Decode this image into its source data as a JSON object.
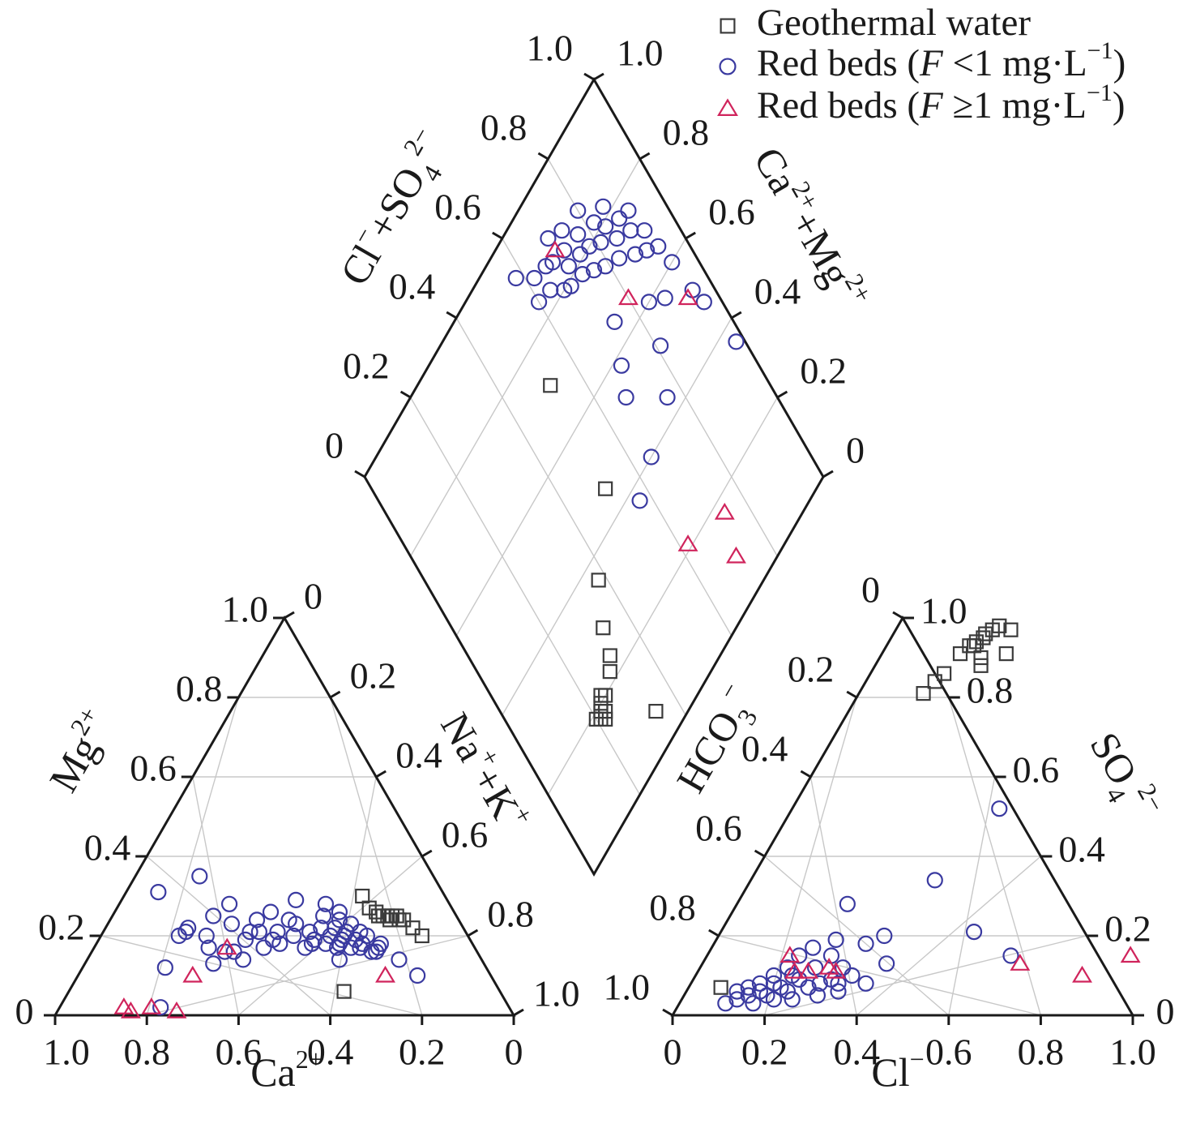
{
  "chart_data": {
    "type": "scatter",
    "diagram": "Piper trilinear diagram",
    "legend": [
      {
        "key": "geo",
        "symbol": "square",
        "color": "#3b3b3b",
        "label": "Geothermal water"
      },
      {
        "key": "rb_low",
        "symbol": "circle",
        "color": "#3a3aa0",
        "label_prefix": "Red beds (",
        "label_var": "F",
        "label_rel": " <1 mg·L",
        "label_exp": "−1",
        "label_suffix": ")"
      },
      {
        "key": "rb_high",
        "symbol": "triangle",
        "color": "#d0245c",
        "label_prefix": "Red beds (",
        "label_var": "F",
        "label_rel": " ≥1 mg·L",
        "label_exp": "−1",
        "label_suffix": ")"
      }
    ],
    "legend_placement": "top-right",
    "tick_labels": [
      "0",
      "0.2",
      "0.4",
      "0.6",
      "0.8",
      "1.0"
    ],
    "cation_triangle": {
      "axes": {
        "mg": {
          "base": "Mg",
          "sup": "2+"
        },
        "nak": {
          "base1": "Na",
          "sup1": "+",
          "mid": "+K",
          "sup2": "+"
        },
        "ca": {
          "base": "Ca",
          "sup": "2+"
        }
      },
      "series": {
        "geo": [
          [
            0.1,
            0.2
          ],
          [
            0.11,
            0.22
          ],
          [
            0.12,
            0.24
          ],
          [
            0.13,
            0.25
          ],
          [
            0.13,
            0.24
          ],
          [
            0.14,
            0.25
          ],
          [
            0.15,
            0.25
          ],
          [
            0.15,
            0.24
          ],
          [
            0.16,
            0.25
          ],
          [
            0.17,
            0.25
          ],
          [
            0.17,
            0.26
          ],
          [
            0.18,
            0.27
          ],
          [
            0.18,
            0.3
          ],
          [
            0.34,
            0.06
          ]
        ],
        "rb_low": [
          [
            0.16,
            0.1
          ],
          [
            0.18,
            0.14
          ],
          [
            0.2,
            0.18
          ],
          [
            0.21,
            0.17
          ],
          [
            0.22,
            0.2
          ],
          [
            0.23,
            0.16
          ],
          [
            0.23,
            0.21
          ],
          [
            0.24,
            0.18
          ],
          [
            0.24,
            0.23
          ],
          [
            0.25,
            0.17
          ],
          [
            0.25,
            0.19
          ],
          [
            0.26,
            0.21
          ],
          [
            0.26,
            0.24
          ],
          [
            0.27,
            0.17
          ],
          [
            0.27,
            0.2
          ],
          [
            0.28,
            0.19
          ],
          [
            0.28,
            0.22
          ],
          [
            0.29,
            0.18
          ],
          [
            0.29,
            0.25
          ],
          [
            0.3,
            0.17
          ],
          [
            0.3,
            0.2
          ],
          [
            0.31,
            0.14
          ],
          [
            0.31,
            0.22
          ],
          [
            0.32,
            0.18
          ],
          [
            0.33,
            0.29
          ],
          [
            0.34,
            0.21
          ],
          [
            0.35,
            0.18
          ],
          [
            0.36,
            0.23
          ],
          [
            0.37,
            0.17
          ],
          [
            0.38,
            0.2
          ],
          [
            0.4,
            0.26
          ],
          [
            0.41,
            0.21
          ],
          [
            0.43,
            0.19
          ],
          [
            0.44,
            0.24
          ],
          [
            0.46,
            0.17
          ],
          [
            0.47,
            0.21
          ],
          [
            0.48,
            0.28
          ],
          [
            0.49,
            0.19
          ],
          [
            0.5,
            0.23
          ],
          [
            0.51,
            0.35
          ],
          [
            0.52,
            0.14
          ],
          [
            0.53,
            0.16
          ],
          [
            0.55,
            0.16
          ],
          [
            0.57,
            0.2
          ],
          [
            0.59,
            0.13
          ],
          [
            0.6,
            0.22
          ],
          [
            0.61,
            0.21
          ],
          [
            0.62,
            0.31
          ],
          [
            0.63,
            0.2
          ],
          [
            0.7,
            0.12
          ],
          [
            0.76,
            0.02
          ],
          [
            0.25,
            0.26
          ],
          [
            0.27,
            0.28
          ],
          [
            0.22,
            0.16
          ],
          [
            0.34,
            0.19
          ],
          [
            0.37,
            0.24
          ],
          [
            0.42,
            0.18
          ],
          [
            0.45,
            0.21
          ],
          [
            0.53,
            0.25
          ],
          [
            0.58,
            0.17
          ]
        ],
        "rb_high": [
          [
            0.23,
            0.1
          ],
          [
            0.54,
            0.17
          ],
          [
            0.65,
            0.1
          ],
          [
            0.73,
            0.01
          ],
          [
            0.78,
            0.02
          ],
          [
            0.83,
            0.01
          ],
          [
            0.84,
            0.02
          ]
        ]
      }
    },
    "anion_triangle": {
      "axes": {
        "hco3": {
          "base": "HCO",
          "sub": "3",
          "sup": "−"
        },
        "so4": {
          "base": "SO",
          "sub": "4",
          "sup": "2−"
        },
        "cl": {
          "base": "Cl",
          "sup": "−"
        }
      },
      "series": {
        "geo": [
          [
            0.07,
            0.07
          ],
          [
            0.14,
            0.81
          ],
          [
            0.15,
            0.84
          ],
          [
            0.16,
            0.86
          ],
          [
            0.17,
            0.91
          ],
          [
            0.18,
            0.93
          ],
          [
            0.19,
            0.93
          ],
          [
            0.19,
            0.94
          ],
          [
            0.2,
            0.95
          ],
          [
            0.2,
            0.96
          ],
          [
            0.21,
            0.97
          ],
          [
            0.22,
            0.98
          ],
          [
            0.22,
            0.9
          ],
          [
            0.23,
            0.88
          ],
          [
            0.25,
            0.97
          ],
          [
            0.27,
            0.91
          ]
        ],
        "rb_low": [
          [
            0.1,
            0.03
          ],
          [
            0.11,
            0.06
          ],
          [
            0.12,
            0.04
          ],
          [
            0.13,
            0.07
          ],
          [
            0.14,
            0.05
          ],
          [
            0.15,
            0.08
          ],
          [
            0.16,
            0.03
          ],
          [
            0.16,
            0.06
          ],
          [
            0.17,
            0.1
          ],
          [
            0.18,
            0.05
          ],
          [
            0.18,
            0.08
          ],
          [
            0.19,
            0.12
          ],
          [
            0.2,
            0.04
          ],
          [
            0.2,
            0.07
          ],
          [
            0.21,
            0.1
          ],
          [
            0.22,
            0.06
          ],
          [
            0.23,
            0.09
          ],
          [
            0.24,
            0.04
          ],
          [
            0.25,
            0.12
          ],
          [
            0.26,
            0.07
          ],
          [
            0.27,
            0.15
          ],
          [
            0.28,
            0.08
          ],
          [
            0.29,
            0.05
          ],
          [
            0.3,
            0.09
          ],
          [
            0.31,
            0.12
          ],
          [
            0.32,
            0.08
          ],
          [
            0.33,
            0.06
          ],
          [
            0.34,
            0.1
          ],
          [
            0.2,
            0.15
          ],
          [
            0.22,
            0.17
          ],
          [
            0.26,
            0.19
          ],
          [
            0.33,
            0.18
          ],
          [
            0.36,
            0.2
          ],
          [
            0.24,
            0.28
          ],
          [
            0.4,
            0.34
          ],
          [
            0.45,
            0.52
          ],
          [
            0.55,
            0.21
          ],
          [
            0.66,
            0.15
          ],
          [
            0.4,
            0.13
          ],
          [
            0.38,
            0.08
          ]
        ],
        "rb_high": [
          [
            0.18,
            0.15
          ],
          [
            0.21,
            0.11
          ],
          [
            0.24,
            0.11
          ],
          [
            0.28,
            0.12
          ],
          [
            0.3,
            0.11
          ],
          [
            0.69,
            0.13
          ],
          [
            0.84,
            0.1
          ],
          [
            0.92,
            0.15
          ]
        ]
      }
    },
    "diamond": {
      "axes": {
        "clso4": {
          "base1": "Cl",
          "sup1": "−",
          "mid": "+SO",
          "sub2": "4",
          "sup2": "2−"
        },
        "camg": {
          "base1": "Ca",
          "sup1": "2+",
          "mid": "+Mg",
          "sup2": "2+"
        }
      },
      "series": {
        "geo": [
          [
            0.77,
            0.82
          ],
          [
            0.78,
            0.83
          ],
          [
            0.79,
            0.82
          ],
          [
            0.78,
            0.81
          ],
          [
            0.77,
            0.8
          ],
          [
            0.8,
            0.81
          ],
          [
            0.76,
            0.79
          ],
          [
            0.75,
            0.8
          ],
          [
            0.71,
            0.78
          ],
          [
            0.69,
            0.76
          ],
          [
            0.67,
            0.71
          ],
          [
            0.62,
            0.64
          ],
          [
            0.49,
            0.54
          ],
          [
            0.48,
            0.29
          ],
          [
            0.66,
            0.93
          ]
        ],
        "rb_low": [
          [
            0.42,
            0.08
          ],
          [
            0.4,
            0.16
          ],
          [
            0.38,
            0.12
          ],
          [
            0.36,
            0.17
          ],
          [
            0.34,
            0.13
          ],
          [
            0.33,
            0.2
          ],
          [
            0.32,
            0.14
          ],
          [
            0.31,
            0.21
          ],
          [
            0.3,
            0.1
          ],
          [
            0.29,
            0.18
          ],
          [
            0.28,
            0.15
          ],
          [
            0.27,
            0.22
          ],
          [
            0.26,
            0.12
          ],
          [
            0.25,
            0.19
          ],
          [
            0.24,
            0.24
          ],
          [
            0.23,
            0.16
          ],
          [
            0.22,
            0.2
          ],
          [
            0.21,
            0.26
          ],
          [
            0.2,
            0.13
          ],
          [
            0.19,
            0.22
          ],
          [
            0.18,
            0.18
          ],
          [
            0.17,
            0.28
          ],
          [
            0.16,
            0.21
          ],
          [
            0.15,
            0.25
          ],
          [
            0.14,
            0.18
          ],
          [
            0.13,
            0.31
          ],
          [
            0.12,
            0.23
          ],
          [
            0.11,
            0.27
          ],
          [
            0.1,
            0.33
          ],
          [
            0.09,
            0.24
          ],
          [
            0.08,
            0.3
          ],
          [
            0.07,
            0.35
          ],
          [
            0.06,
            0.4
          ],
          [
            0.05,
            0.48
          ],
          [
            0.04,
            0.52
          ],
          [
            0.02,
            0.64
          ],
          [
            0.12,
            0.43
          ],
          [
            0.16,
            0.4
          ],
          [
            0.19,
            0.48
          ],
          [
            0.24,
            0.56
          ],
          [
            0.3,
            0.42
          ],
          [
            0.35,
            0.6
          ],
          [
            0.43,
            0.63
          ],
          [
            0.26,
            0.35
          ],
          [
            0.33,
            0.47
          ]
        ],
        "rb_high": [
          [
            0.3,
            0.13
          ],
          [
            0.2,
            0.35
          ],
          [
            0.07,
            0.48
          ],
          [
            0.38,
            0.79
          ],
          [
            0.26,
            0.83
          ],
          [
            0.29,
            0.91
          ]
        ]
      }
    }
  }
}
